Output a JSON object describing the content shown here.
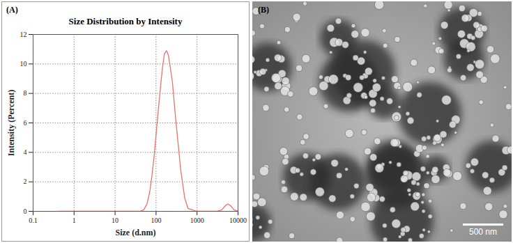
{
  "chart_data": {
    "type": "line",
    "title": "Size Distribution by Intensity",
    "annotations": [
      "(A)"
    ],
    "x_label": "Size (d.nm)",
    "y_label": "Intensity (Percent)",
    "x": [
      0.4,
      1,
      10,
      40,
      50,
      60,
      70,
      80,
      90,
      100,
      120,
      140,
      160,
      180,
      200,
      250,
      300,
      400,
      500,
      600,
      1000,
      3000,
      4000,
      5000,
      5600,
      6500,
      8000,
      10000
    ],
    "series": [
      {
        "name": "Intensity",
        "color": "#e8726e",
        "values": [
          0,
          0,
          0,
          0,
          0.1,
          0.5,
          1.3,
          2.5,
          3.8,
          5.2,
          7.6,
          9.5,
          10.7,
          10.9,
          10.6,
          8.8,
          6.3,
          2.8,
          0.9,
          0.2,
          0,
          0,
          0.1,
          0.4,
          0.5,
          0.4,
          0.1,
          0
        ]
      }
    ],
    "xlim": [
      0.1,
      10000
    ],
    "xticks": [
      0.1,
      1,
      10,
      100,
      1000,
      10000
    ],
    "ylim": [
      0,
      12
    ],
    "yticks": [
      0,
      2,
      4,
      6,
      8,
      10,
      12
    ],
    "log": "x",
    "grid": true
  },
  "image_panel": {
    "label": "(B)",
    "scale_bar": "500 nm"
  }
}
